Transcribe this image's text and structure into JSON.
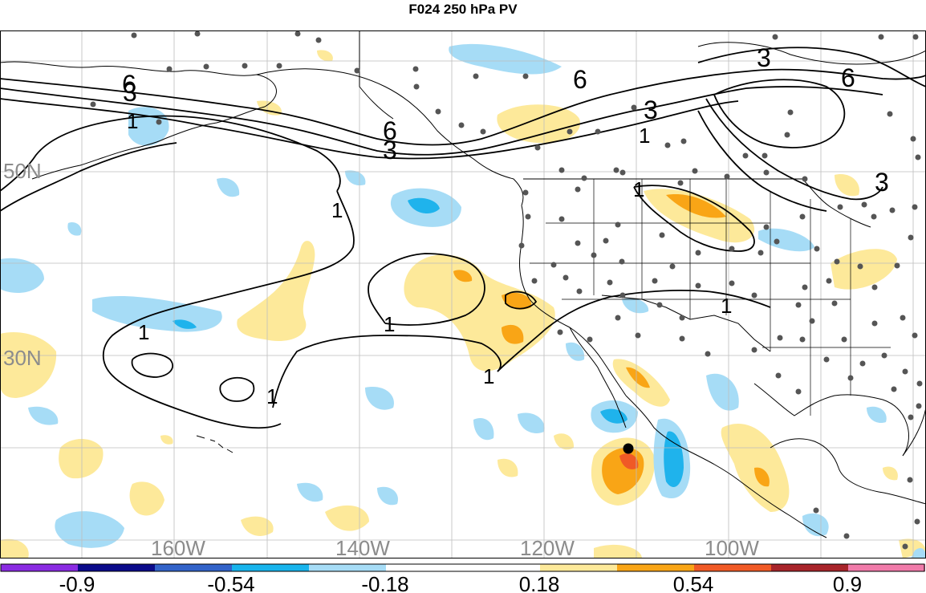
{
  "title": "F024 250 hPa PV",
  "map": {
    "lat_labels": [
      "50N",
      "30N"
    ],
    "lon_labels": [
      "160W",
      "140W",
      "120W",
      "100W"
    ],
    "contour_labels": [
      "6",
      "3",
      "1",
      "6",
      "6",
      "3",
      "3",
      "6",
      "3",
      "1",
      "1",
      "1",
      "1",
      "1",
      "1",
      "1",
      "1",
      "3"
    ],
    "colors": {
      "pos1": "#fde99a",
      "pos2": "#f9a516",
      "pos3": "#f05a26",
      "neg1": "#a6dcf6",
      "neg2": "#1fb3ec",
      "neg3": "#1f6fd1",
      "station": "#555555"
    }
  },
  "colorbar": {
    "segments": [
      "#8a2be2",
      "#0a0a8a",
      "#3263c9",
      "#18b4ec",
      "#a6dcf6",
      "#ffffff",
      "#ffffff",
      "#fde99a",
      "#f9a516",
      "#f05a26",
      "#a8242a",
      "#f07aa9"
    ],
    "labels": [
      "-0.9",
      "-0.54",
      "-0.18",
      "0.18",
      "0.54",
      "0.9"
    ]
  }
}
